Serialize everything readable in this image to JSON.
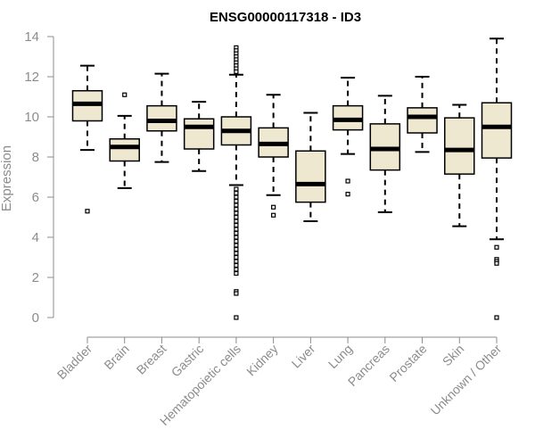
{
  "chart_data": {
    "type": "boxplot",
    "title": "ENSG00000117318 - ID3",
    "xlabel": "",
    "ylabel": "Expression",
    "ylim": [
      0,
      14
    ],
    "yticks": [
      0,
      2,
      4,
      6,
      8,
      10,
      12,
      14
    ],
    "grid": false,
    "box_fill": "#efe8d1",
    "box_stroke": "#000000",
    "axis_color": "#8c8c8c",
    "categories": [
      "Bladder",
      "Brain",
      "Breast",
      "Gastric",
      "Hematopoietic cells",
      "Kidney",
      "Liver",
      "Lung",
      "Pancreas",
      "Prostate",
      "Skin",
      "Unknown / Other"
    ],
    "boxes": [
      {
        "label": "Bladder",
        "whisker_low": 8.35,
        "q1": 9.8,
        "median": 10.65,
        "q3": 11.3,
        "whisker_high": 12.55,
        "outliers": [
          5.3
        ]
      },
      {
        "label": "Brain",
        "whisker_low": 6.45,
        "q1": 7.8,
        "median": 8.5,
        "q3": 8.9,
        "whisker_high": 10.05,
        "outliers": [
          11.1
        ]
      },
      {
        "label": "Breast",
        "whisker_low": 7.75,
        "q1": 9.3,
        "median": 9.8,
        "q3": 10.55,
        "whisker_high": 12.15,
        "outliers": []
      },
      {
        "label": "Gastric",
        "whisker_low": 7.3,
        "q1": 8.4,
        "median": 9.5,
        "q3": 9.9,
        "whisker_high": 10.75,
        "outliers": []
      },
      {
        "label": "Hematopoietic cells",
        "whisker_low": 6.6,
        "q1": 8.6,
        "median": 9.3,
        "q3": 10.0,
        "whisker_high": 12.1,
        "outliers": [
          13.45,
          13.3,
          13.15,
          13.0,
          12.85,
          12.7,
          12.55,
          12.4,
          12.25,
          6.4,
          6.2,
          6.0,
          5.8,
          5.6,
          5.4,
          5.2,
          5.0,
          4.8,
          4.6,
          4.4,
          4.2,
          4.0,
          3.8,
          3.6,
          3.4,
          3.2,
          3.0,
          2.8,
          2.6,
          2.4,
          2.2,
          1.3,
          1.2,
          0.0
        ]
      },
      {
        "label": "Kidney",
        "whisker_low": 6.1,
        "q1": 8.0,
        "median": 8.65,
        "q3": 9.45,
        "whisker_high": 11.1,
        "outliers": [
          5.5,
          5.1
        ]
      },
      {
        "label": "Liver",
        "whisker_low": 4.8,
        "q1": 5.75,
        "median": 6.65,
        "q3": 8.3,
        "whisker_high": 10.2,
        "outliers": []
      },
      {
        "label": "Lung",
        "whisker_low": 8.15,
        "q1": 9.35,
        "median": 9.85,
        "q3": 10.55,
        "whisker_high": 11.95,
        "outliers": [
          6.8,
          6.15
        ]
      },
      {
        "label": "Pancreas",
        "whisker_low": 5.25,
        "q1": 7.35,
        "median": 8.4,
        "q3": 9.65,
        "whisker_high": 11.05,
        "outliers": []
      },
      {
        "label": "Prostate",
        "whisker_low": 8.25,
        "q1": 9.2,
        "median": 10.0,
        "q3": 10.45,
        "whisker_high": 12.0,
        "outliers": []
      },
      {
        "label": "Skin",
        "whisker_low": 4.55,
        "q1": 7.15,
        "median": 8.35,
        "q3": 9.95,
        "whisker_high": 10.6,
        "outliers": []
      },
      {
        "label": "Unknown / Other",
        "whisker_low": 3.9,
        "q1": 7.95,
        "median": 9.5,
        "q3": 10.7,
        "whisker_high": 13.9,
        "outliers": [
          3.5,
          2.9,
          2.8,
          2.7,
          0.0
        ]
      }
    ]
  }
}
